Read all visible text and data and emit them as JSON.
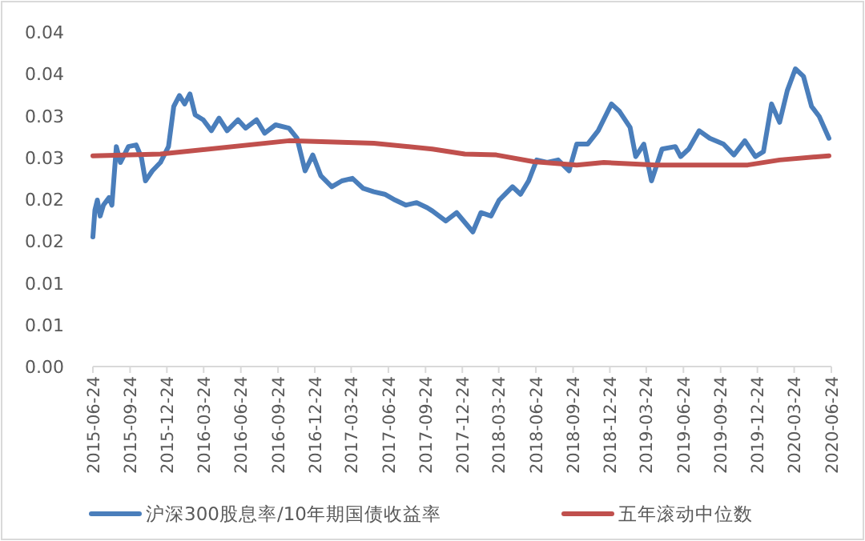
{
  "chart_data": {
    "type": "line",
    "xlim": [
      "2015-06-24",
      "2020-06-24"
    ],
    "xticks": [
      "2015-06-24",
      "2015-09-24",
      "2015-12-24",
      "2016-03-24",
      "2016-06-24",
      "2016-09-24",
      "2016-12-24",
      "2017-03-24",
      "2017-06-24",
      "2017-09-24",
      "2017-12-24",
      "2018-03-24",
      "2018-06-24",
      "2018-09-24",
      "2018-12-24",
      "2019-03-24",
      "2019-06-24",
      "2019-09-24",
      "2019-12-24",
      "2020-03-24",
      "2020-06-24"
    ],
    "ylim": [
      0,
      0.04
    ],
    "yticks": [
      {
        "value": 0,
        "label": "0.00"
      },
      {
        "value": 0.005,
        "label": "0.01"
      },
      {
        "value": 0.01,
        "label": "0.01"
      },
      {
        "value": 0.015,
        "label": "0.02"
      },
      {
        "value": 0.02,
        "label": "0.02"
      },
      {
        "value": 0.025,
        "label": "0.03"
      },
      {
        "value": 0.03,
        "label": "0.03"
      },
      {
        "value": 0.035,
        "label": "0.04"
      },
      {
        "value": 0.04,
        "label": "0.04"
      }
    ],
    "legend": "bottom",
    "series": [
      {
        "name": "沪深300股息率/10年期国债收益率",
        "color": "#4a7ebb",
        "x": [
          "2015-06-24",
          "2015-06-29",
          "2015-07-05",
          "2015-07-12",
          "2015-07-20",
          "2015-08-03",
          "2015-08-10",
          "2015-08-21",
          "2015-08-31",
          "2015-09-20",
          "2015-10-09",
          "2015-10-22",
          "2015-11-01",
          "2015-11-18",
          "2015-12-08",
          "2015-12-28",
          "2016-01-10",
          "2016-01-24",
          "2016-02-06",
          "2016-02-19",
          "2016-03-03",
          "2016-03-23",
          "2016-04-12",
          "2016-05-01",
          "2016-05-21",
          "2016-06-17",
          "2016-07-06",
          "2016-08-02",
          "2016-08-22",
          "2016-09-18",
          "2016-10-21",
          "2016-11-10",
          "2016-11-30",
          "2016-12-19",
          "2017-01-08",
          "2017-02-04",
          "2017-03-01",
          "2017-03-27",
          "2017-04-23",
          "2017-05-19",
          "2017-06-15",
          "2017-07-11",
          "2017-08-06",
          "2017-09-02",
          "2017-09-28",
          "2017-10-11",
          "2017-11-13",
          "2017-12-10",
          "2018-01-19",
          "2018-02-08",
          "2018-03-05",
          "2018-03-25",
          "2018-04-27",
          "2018-05-17",
          "2018-06-06",
          "2018-06-26",
          "2018-07-22",
          "2018-08-18",
          "2018-09-14",
          "2018-10-03",
          "2018-10-30",
          "2018-11-25",
          "2018-12-28",
          "2019-01-17",
          "2019-02-12",
          "2019-02-26",
          "2019-03-18",
          "2019-04-06",
          "2019-05-02",
          "2019-06-04",
          "2019-06-17",
          "2019-07-07",
          "2019-08-02",
          "2019-08-28",
          "2019-10-01",
          "2019-10-27",
          "2019-11-23",
          "2019-12-19",
          "2020-01-08",
          "2020-01-28",
          "2020-02-17",
          "2020-03-07",
          "2020-03-27",
          "2020-04-16",
          "2020-05-06",
          "2020-05-25",
          "2020-06-18"
        ],
        "values": [
          0.0155,
          0.0187,
          0.0199,
          0.018,
          0.0193,
          0.0202,
          0.0193,
          0.0263,
          0.0244,
          0.0263,
          0.0265,
          0.025,
          0.0222,
          0.0234,
          0.0244,
          0.0263,
          0.0311,
          0.0324,
          0.0314,
          0.0326,
          0.0301,
          0.0295,
          0.0282,
          0.0297,
          0.0282,
          0.0295,
          0.0285,
          0.0295,
          0.0279,
          0.0289,
          0.0285,
          0.0273,
          0.0234,
          0.0253,
          0.0228,
          0.0215,
          0.0222,
          0.0225,
          0.0213,
          0.0209,
          0.0206,
          0.0199,
          0.0193,
          0.0196,
          0.019,
          0.0186,
          0.0174,
          0.0184,
          0.0161,
          0.0184,
          0.018,
          0.0199,
          0.0215,
          0.0206,
          0.0222,
          0.0247,
          0.0244,
          0.0247,
          0.0234,
          0.0266,
          0.0266,
          0.0282,
          0.0314,
          0.0305,
          0.0286,
          0.0251,
          0.0266,
          0.0222,
          0.026,
          0.0263,
          0.0251,
          0.026,
          0.0282,
          0.0273,
          0.0266,
          0.0253,
          0.027,
          0.0251,
          0.0257,
          0.0314,
          0.0292,
          0.033,
          0.0356,
          0.0347,
          0.0311,
          0.0299,
          0.0273
        ]
      },
      {
        "name": "五年滚动中位数",
        "color": "#c0504d",
        "x": [
          "2015-06-24",
          "2015-12-08",
          "2016-10-21",
          "2017-05-19",
          "2017-10-11",
          "2017-12-30",
          "2018-03-18",
          "2018-06-18",
          "2018-10-03",
          "2018-12-09",
          "2019-04-18",
          "2019-11-30",
          "2020-02-17",
          "2020-06-18"
        ],
        "values": [
          0.0252,
          0.0254,
          0.027,
          0.0267,
          0.026,
          0.0254,
          0.0253,
          0.0245,
          0.0241,
          0.0244,
          0.0241,
          0.0241,
          0.0247,
          0.0252
        ]
      }
    ]
  }
}
